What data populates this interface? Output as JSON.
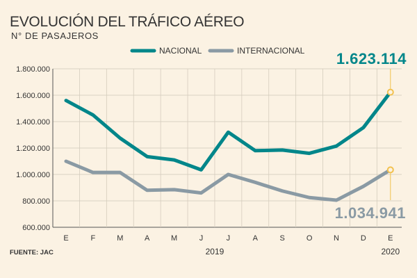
{
  "chart_data": {
    "type": "line",
    "title": "EVOLUCIÓN DEL TRÁFICO AÉREO",
    "subtitle": "N° DE PASAJEROS",
    "source": "FUENTE: JAC",
    "categories": [
      "E",
      "F",
      "M",
      "A",
      "M",
      "J",
      "J",
      "A",
      "S",
      "O",
      "N",
      "D",
      "E"
    ],
    "years": [
      {
        "label": "2019",
        "index": 5.5
      },
      {
        "label": "2020",
        "index": 12
      }
    ],
    "ylim": [
      600000,
      1800000
    ],
    "yticks": [
      "600.000",
      "800.000",
      "1.000.000",
      "1.200.000",
      "1.400.000",
      "1.600.000",
      "1.800.000"
    ],
    "ytick_values": [
      600000,
      800000,
      1000000,
      1200000,
      1400000,
      1600000,
      1800000
    ],
    "series": [
      {
        "name": "NACIONAL",
        "color": "#00868a",
        "values": [
          1560000,
          1450000,
          1275000,
          1135000,
          1110000,
          1035000,
          1320000,
          1180000,
          1185000,
          1160000,
          1215000,
          1355000,
          1623114
        ]
      },
      {
        "name": "INTERNACIONAL",
        "color": "#8a9aa4",
        "values": [
          1100000,
          1015000,
          1015000,
          880000,
          885000,
          860000,
          1000000,
          940000,
          875000,
          825000,
          805000,
          910000,
          1034941
        ]
      }
    ],
    "annotations": {
      "nacional_last": "1.623.114",
      "internacional_last": "1.034.941"
    },
    "marker_color": "#f2c14e"
  }
}
